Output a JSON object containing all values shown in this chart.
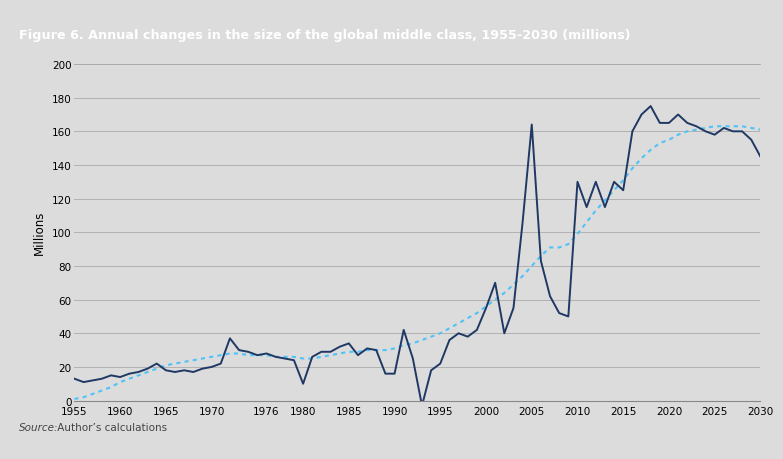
{
  "title": "Figure 6. Annual changes in the size of the global middle class, 1955-2030 (millions)",
  "title_bg_color": "#1B4F8A",
  "title_text_color": "#ffffff",
  "bg_color": "#DCDCDC",
  "plot_bg_color": "#DCDCDC",
  "ylabel": "Millions",
  "source_label": "Source:",
  "source_rest": " Author’s calculations",
  "solid_color": "#1F3864",
  "dotted_color": "#4FC3F7",
  "years": [
    1955,
    1956,
    1957,
    1958,
    1959,
    1960,
    1961,
    1962,
    1963,
    1964,
    1965,
    1966,
    1967,
    1968,
    1969,
    1970,
    1971,
    1972,
    1973,
    1974,
    1975,
    1976,
    1977,
    1978,
    1979,
    1980,
    1981,
    1982,
    1983,
    1984,
    1985,
    1986,
    1987,
    1988,
    1989,
    1990,
    1991,
    1992,
    1993,
    1994,
    1995,
    1996,
    1997,
    1998,
    1999,
    2000,
    2001,
    2002,
    2003,
    2004,
    2005,
    2006,
    2007,
    2008,
    2009,
    2010,
    2011,
    2012,
    2013,
    2014,
    2015,
    2016,
    2017,
    2018,
    2019,
    2020,
    2021,
    2022,
    2023,
    2024,
    2025,
    2026,
    2027,
    2028,
    2029,
    2030
  ],
  "solid_values": [
    13,
    11,
    12,
    13,
    15,
    14,
    16,
    17,
    19,
    22,
    18,
    17,
    18,
    17,
    19,
    20,
    22,
    37,
    30,
    29,
    27,
    28,
    26,
    25,
    24,
    10,
    26,
    29,
    29,
    32,
    34,
    27,
    31,
    30,
    16,
    16,
    42,
    25,
    -3,
    18,
    22,
    36,
    40,
    38,
    42,
    55,
    70,
    40,
    55,
    106,
    164,
    83,
    62,
    52,
    50,
    130,
    115,
    130,
    115,
    130,
    125,
    160,
    170,
    175,
    165,
    165,
    170,
    165,
    163,
    160,
    158,
    162,
    160,
    160,
    155,
    145
  ],
  "dotted_values": [
    1,
    2,
    4,
    6,
    8,
    11,
    13,
    15,
    17,
    19,
    21,
    22,
    23,
    24,
    25,
    26,
    27,
    28,
    28,
    27,
    27,
    27,
    26,
    26,
    26,
    25,
    25,
    26,
    27,
    28,
    29,
    29,
    30,
    30,
    30,
    31,
    33,
    34,
    36,
    38,
    40,
    43,
    46,
    49,
    52,
    56,
    60,
    64,
    69,
    74,
    80,
    86,
    91,
    91,
    93,
    99,
    106,
    113,
    119,
    125,
    131,
    138,
    144,
    149,
    153,
    155,
    158,
    160,
    161,
    162,
    163,
    163,
    163,
    163,
    162,
    161
  ],
  "xtick_labels": [
    "1955",
    "1960",
    "1965",
    "1970",
    "1976",
    "1980",
    "1985",
    "1990",
    "1995",
    "2000",
    "2005",
    "2010",
    "2015",
    "2020",
    "2025",
    "2030"
  ],
  "xtick_years": [
    1955,
    1960,
    1965,
    1970,
    1976,
    1980,
    1985,
    1990,
    1995,
    2000,
    2005,
    2010,
    2015,
    2020,
    2025,
    2030
  ],
  "ylim": [
    0,
    200
  ],
  "yticks": [
    0,
    20,
    40,
    60,
    80,
    100,
    120,
    140,
    160,
    180,
    200
  ]
}
